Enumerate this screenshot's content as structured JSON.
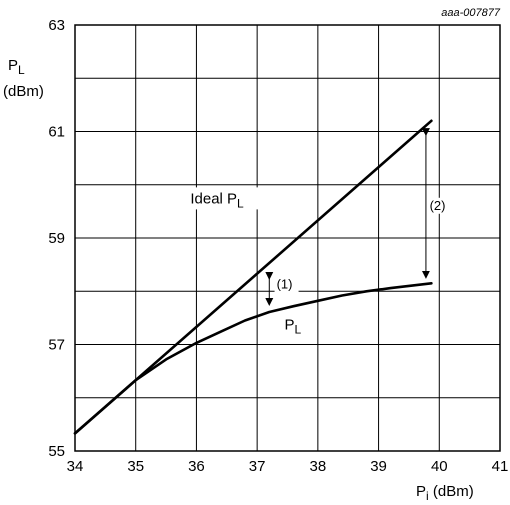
{
  "figure_code": "aaa-007877",
  "chart_data": {
    "type": "line",
    "xlabel": {
      "main": "P",
      "sub": "i",
      "unit": " (dBm)"
    },
    "ylabel": {
      "main": "P",
      "sub": "L",
      "unit": "(dBm)"
    },
    "xlim": [
      34,
      41
    ],
    "ylim": [
      55,
      63
    ],
    "x_ticks": [
      34,
      35,
      36,
      37,
      38,
      39,
      40,
      41
    ],
    "y_ticks": [
      55,
      57,
      59,
      61,
      63
    ],
    "y_ticks_labeled": [
      "55",
      "57",
      "59",
      "61",
      "63"
    ],
    "x_ticks_labeled": [
      "34",
      "35",
      "36",
      "37",
      "38",
      "39",
      "40",
      "41"
    ],
    "grid": true,
    "grid_x_step": 1,
    "grid_y_step": 1,
    "series": [
      {
        "name": "Ideal P_L",
        "label_main": "Ideal P",
        "label_sub": "L",
        "x": [
          34,
          39.87
        ],
        "y": [
          55.33,
          61.2
        ]
      },
      {
        "name": "P_L",
        "label_main": "P",
        "label_sub": "L",
        "x": [
          34,
          34.5,
          35.0,
          35.5,
          36.0,
          36.4,
          36.8,
          37.2,
          37.6,
          38.0,
          38.4,
          38.8,
          39.2,
          39.5,
          39.87
        ],
        "y": [
          55.33,
          55.83,
          56.33,
          56.72,
          57.03,
          57.24,
          57.45,
          57.61,
          57.72,
          57.82,
          57.92,
          58.0,
          58.06,
          58.1,
          58.15
        ]
      }
    ],
    "annotations": [
      {
        "name": "(1)",
        "x": 37.2,
        "y_top": 58.4,
        "y_bottom": 57.61,
        "label_x": 37.32,
        "label_y": 58.05
      },
      {
        "name": "(2)",
        "x": 39.78,
        "y_top": 61.1,
        "y_bottom": 58.12,
        "label_x": 39.84,
        "label_y": 59.53
      }
    ],
    "series_labels": [
      {
        "series": 0,
        "x": 35.9,
        "y": 59.65
      },
      {
        "series": 1,
        "x": 37.45,
        "y": 57.28
      }
    ]
  }
}
